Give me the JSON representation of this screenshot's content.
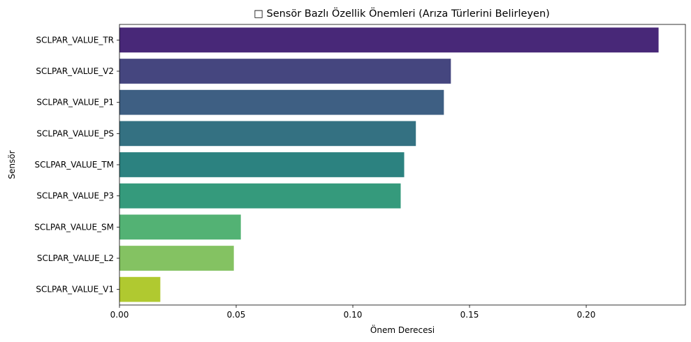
{
  "chart_data": {
    "type": "bar",
    "orientation": "horizontal",
    "title": "□ Sensör Bazlı Özellik Önemleri (Arıza Türlerini Belirleyen)",
    "xlabel": "Önem Derecesi",
    "ylabel": "Sensör",
    "categories": [
      "SCLPAR_VALUE_TR",
      "SCLPAR_VALUE_V2",
      "SCLPAR_VALUE_P1",
      "SCLPAR_VALUE_PS",
      "SCLPAR_VALUE_TM",
      "SCLPAR_VALUE_P3",
      "SCLPAR_VALUE_SM",
      "SCLPAR_VALUE_L2",
      "SCLPAR_VALUE_V1"
    ],
    "values": [
      0.231,
      0.142,
      0.139,
      0.127,
      0.122,
      0.1205,
      0.052,
      0.049,
      0.0175
    ],
    "colors": [
      "#482878",
      "#45467f",
      "#3e5f83",
      "#347182",
      "#2c8280",
      "#359a7c",
      "#53b274",
      "#84c262",
      "#b0c930"
    ],
    "xlim": [
      0,
      0.2425
    ],
    "xticks": [
      0.0,
      0.05,
      0.1,
      0.15,
      0.2
    ],
    "xtick_labels": [
      "0.00",
      "0.05",
      "0.10",
      "0.15",
      "0.20"
    ],
    "grid": false,
    "legend": "none"
  }
}
